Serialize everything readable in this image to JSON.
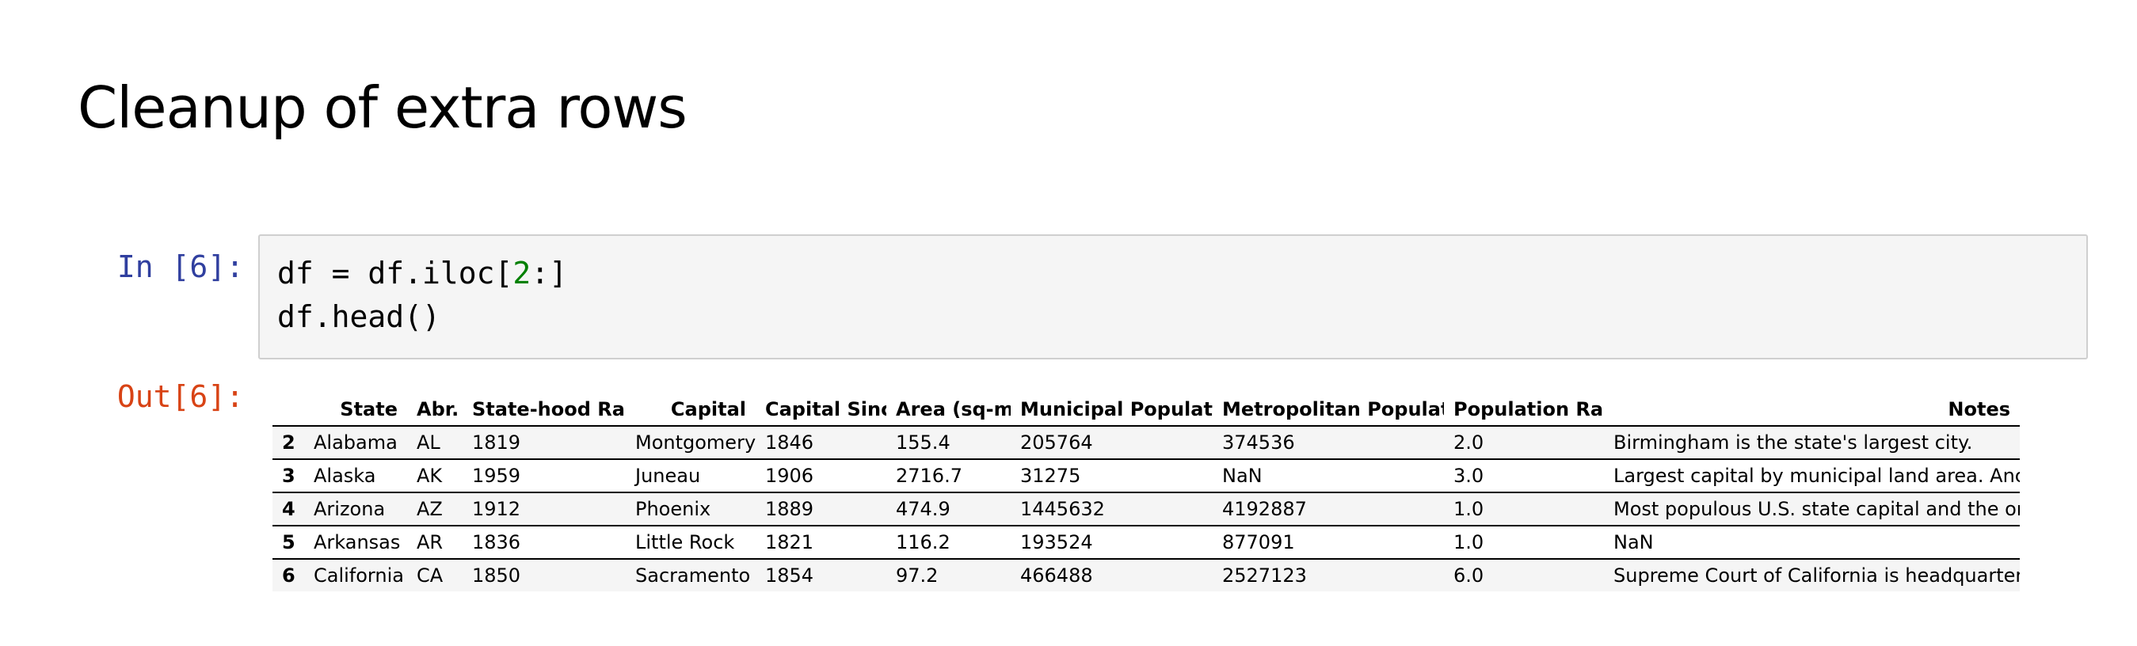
{
  "heading": "Cleanup of extra rows",
  "input_cell": {
    "prompt": "In [6]:",
    "code_line1_prefix": "df = df.iloc[",
    "code_line1_number": "2",
    "code_line1_suffix": ":]",
    "code_line2": "df.head()"
  },
  "output_cell": {
    "prompt": "Out[6]:",
    "table": {
      "columns": [
        "",
        "State",
        "Abr.",
        "State-hood Rank",
        "Capital",
        "Capital Since",
        "Area (sq-mi)",
        "Municipal Population",
        "Metropolitan Population",
        "Population Rank",
        "Notes"
      ],
      "rows": [
        [
          "2",
          "Alabama",
          "AL",
          "1819",
          "Montgomery",
          "1846",
          "155.4",
          "205764",
          "374536",
          "2.0",
          "Birmingham is the state's largest city."
        ],
        [
          "3",
          "Alaska",
          "AK",
          "1959",
          "Juneau",
          "1906",
          "2716.7",
          "31275",
          "NaN",
          "3.0",
          "Largest capital by municipal land area. Anchor..."
        ],
        [
          "4",
          "Arizona",
          "AZ",
          "1912",
          "Phoenix",
          "1889",
          "474.9",
          "1445632",
          "4192887",
          "1.0",
          "Most populous U.S. state capital and the only ..."
        ],
        [
          "5",
          "Arkansas",
          "AR",
          "1836",
          "Little Rock",
          "1821",
          "116.2",
          "193524",
          "877091",
          "1.0",
          "NaN"
        ],
        [
          "6",
          "California",
          "CA",
          "1850",
          "Sacramento",
          "1854",
          "97.2",
          "466488",
          "2527123",
          "6.0",
          "Supreme Court of California is headquartered i..."
        ]
      ]
    }
  }
}
